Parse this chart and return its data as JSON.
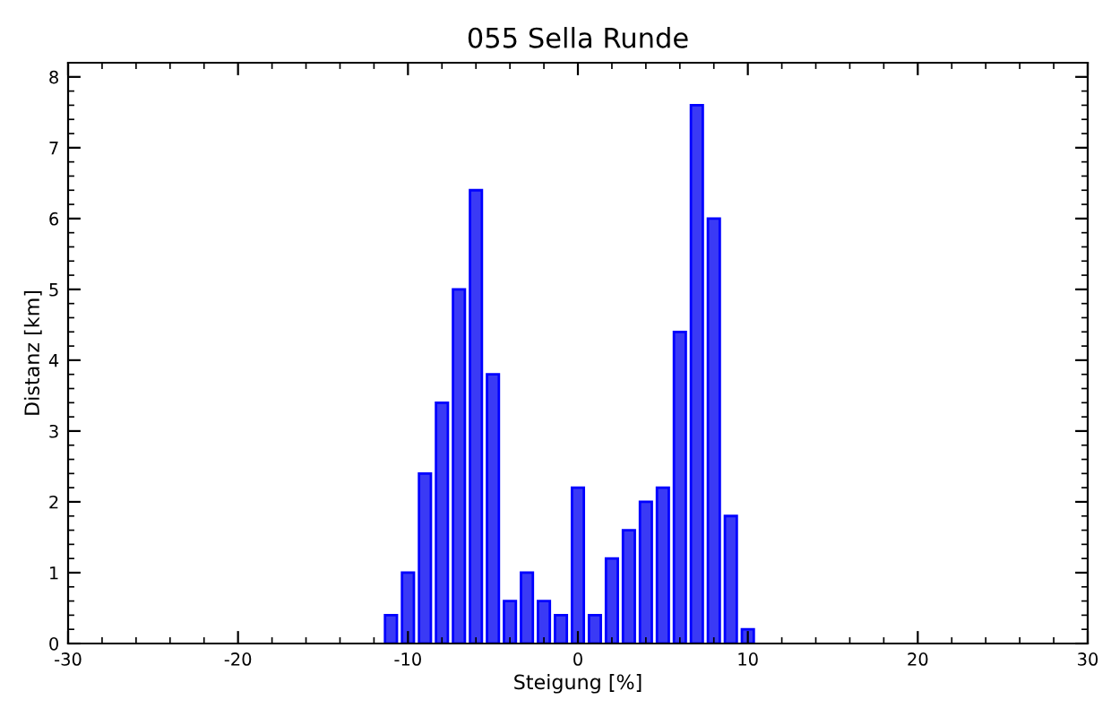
{
  "chart_data": {
    "type": "bar",
    "title": "055 Sella Runde",
    "xlabel": "Steigung [%]",
    "ylabel": "Distanz [km]",
    "x": [
      -11,
      -10,
      -9,
      -8,
      -7,
      -6,
      -5,
      -4,
      -3,
      -2,
      -1,
      0,
      1,
      2,
      3,
      4,
      5,
      6,
      7,
      8,
      9,
      10
    ],
    "values": [
      0.4,
      1.0,
      2.4,
      3.4,
      5.0,
      6.4,
      3.8,
      0.6,
      1.0,
      0.6,
      0.4,
      2.2,
      0.4,
      1.2,
      1.6,
      2.0,
      2.2,
      4.4,
      7.6,
      6.0,
      1.8,
      0.2
    ],
    "color": "#3a3af5",
    "xlim": [
      -30,
      30
    ],
    "xticks": [
      -30,
      -20,
      -10,
      0,
      10,
      20,
      30
    ],
    "ylim": [
      0,
      8.2
    ],
    "yticks": [
      0,
      1,
      2,
      3,
      4,
      5,
      6,
      7,
      8
    ],
    "grid": false
  }
}
